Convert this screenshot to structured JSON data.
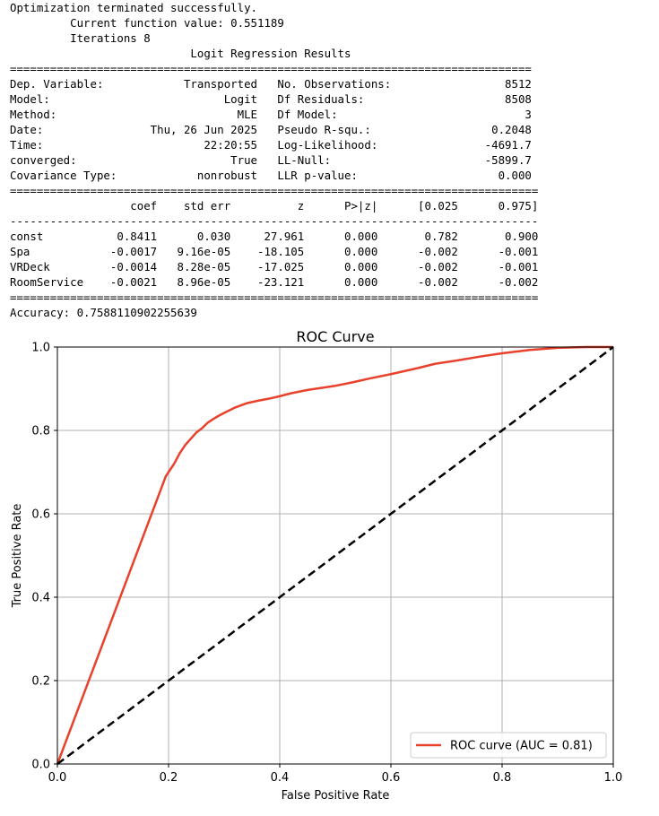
{
  "console": {
    "lines": [
      "Optimization terminated successfully.",
      "         Current function value: 0.551189",
      "         Iterations 8",
      "                           Logit Regression Results",
      "==============================================================================",
      "Dep. Variable:            Transported   No. Observations:                 8512",
      "Model:                          Logit   Df Residuals:                     8508",
      "Method:                           MLE   Df Model:                            3",
      "Date:                Thu, 26 Jun 2025   Pseudo R-squ.:                  0.2048",
      "Time:                        22:20:55   Log-Likelihood:                -4691.7",
      "converged:                       True   LL-Null:                       -5899.7",
      "Covariance Type:            nonrobust   LLR p-value:                     0.000",
      "===============================================================================",
      "                  coef    std err          z      P>|z|      [0.025      0.975]",
      "-------------------------------------------------------------------------------",
      "const           0.8411      0.030     27.961      0.000       0.782       0.900",
      "Spa            -0.0017   9.16e-05    -18.105      0.000      -0.002      -0.001",
      "VRDeck         -0.0014   8.28e-05    -17.025      0.000      -0.002      -0.001",
      "RoomService    -0.0021   8.96e-05    -23.121      0.000      -0.002      -0.002",
      "===============================================================================",
      "Accuracy: 0.7588110902255639"
    ]
  },
  "chart_data": {
    "type": "line",
    "title": "ROC Curve",
    "xlabel": "False Positive Rate",
    "ylabel": "True Positive Rate",
    "xlim": [
      0.0,
      1.0
    ],
    "ylim": [
      0.0,
      1.0
    ],
    "xticks": [
      "0.0",
      "0.2",
      "0.4",
      "0.6",
      "0.8",
      "1.0"
    ],
    "yticks": [
      "0.0",
      "0.2",
      "0.4",
      "0.6",
      "0.8",
      "1.0"
    ],
    "grid": true,
    "legend_position": "lower-right",
    "series": [
      {
        "name": "ROC curve (AUC = 0.81)",
        "color": "#e8412c",
        "style": "solid",
        "x": [
          0.0,
          0.195,
          0.2,
          0.21,
          0.22,
          0.23,
          0.24,
          0.25,
          0.26,
          0.27,
          0.28,
          0.29,
          0.3,
          0.32,
          0.34,
          0.36,
          0.38,
          0.4,
          0.42,
          0.45,
          0.48,
          0.5,
          0.53,
          0.56,
          0.6,
          0.65,
          0.68,
          0.72,
          0.76,
          0.8,
          0.85,
          0.9,
          0.95,
          1.0
        ],
        "y": [
          0.0,
          0.69,
          0.7,
          0.72,
          0.745,
          0.765,
          0.78,
          0.795,
          0.805,
          0.818,
          0.827,
          0.835,
          0.842,
          0.855,
          0.865,
          0.871,
          0.876,
          0.882,
          0.889,
          0.897,
          0.903,
          0.907,
          0.915,
          0.924,
          0.935,
          0.95,
          0.96,
          0.968,
          0.977,
          0.985,
          0.993,
          0.998,
          1.0,
          1.0
        ]
      },
      {
        "name": "",
        "color": "#000000",
        "style": "dashed",
        "x": [
          0.0,
          1.0
        ],
        "y": [
          0.0,
          1.0
        ]
      }
    ]
  }
}
